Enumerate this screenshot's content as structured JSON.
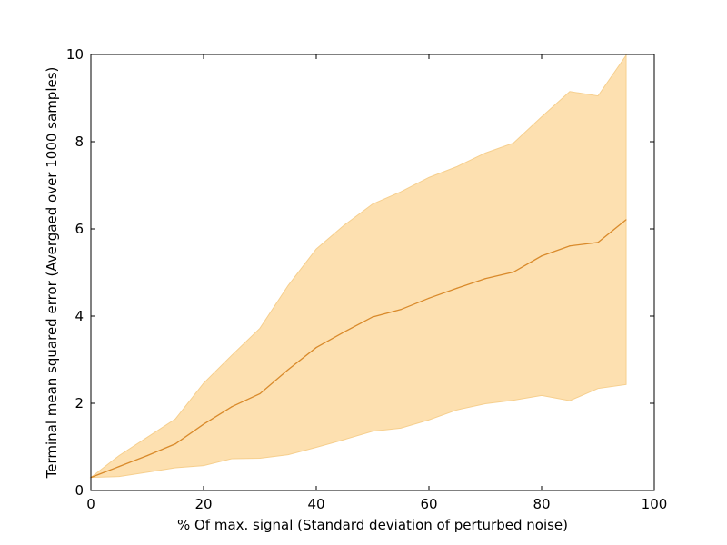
{
  "chart_data": {
    "type": "area",
    "title": "",
    "xlabel": "% Of max. signal (Standard deviation of perturbed noise)",
    "ylabel": "Terminal mean squared error (Avergaed over 1000 samples)",
    "xlim": [
      0,
      100
    ],
    "ylim": [
      0,
      10
    ],
    "xticks": [
      0,
      20,
      40,
      60,
      80,
      100
    ],
    "yticks": [
      0,
      2,
      4,
      6,
      8,
      10
    ],
    "grid": false,
    "colors": {
      "line": "#d98a2b",
      "band": "#fde0b0",
      "band_edge": "#f6cf8e"
    },
    "x": [
      0,
      5,
      10,
      15,
      20,
      25,
      30,
      35,
      40,
      45,
      50,
      55,
      60,
      65,
      70,
      75,
      80,
      85,
      90,
      95
    ],
    "series": [
      {
        "values": [
          0.3,
          0.55,
          0.8,
          1.07,
          1.52,
          1.92,
          2.22,
          2.77,
          3.28,
          3.64,
          3.98,
          4.15,
          4.41,
          4.64,
          4.86,
          5.01,
          5.38,
          5.61,
          5.69,
          6.21
        ]
      }
    ],
    "band_upper": [
      0.3,
      0.8,
      1.22,
      1.64,
      2.46,
      3.1,
      3.72,
      4.7,
      5.54,
      6.09,
      6.57,
      6.85,
      7.18,
      7.43,
      7.74,
      7.97,
      8.57,
      9.15,
      9.05,
      9.98
    ],
    "band_lower": [
      0.3,
      0.32,
      0.42,
      0.52,
      0.57,
      0.73,
      0.74,
      0.82,
      0.99,
      1.17,
      1.36,
      1.43,
      1.62,
      1.85,
      1.99,
      2.07,
      2.18,
      2.06,
      2.34,
      2.43
    ]
  }
}
